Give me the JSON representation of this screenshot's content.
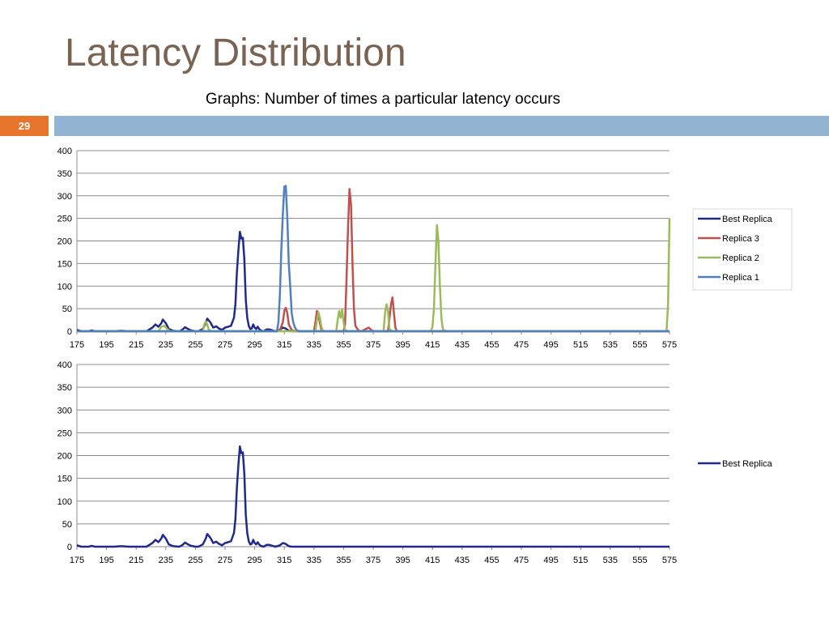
{
  "slide": {
    "title": "Latency Distribution",
    "subtitle": "Graphs: Number of times a particular latency occurs",
    "number": "29"
  },
  "colors": {
    "best_replica": "#1f2a8a",
    "replica_3": "#c0504d",
    "replica_2": "#9bbb59",
    "replica_1": "#4f81bd"
  },
  "chart_data": [
    {
      "type": "line",
      "xlabel": "",
      "ylabel": "",
      "xlim": [
        175,
        575
      ],
      "ylim": [
        0,
        400
      ],
      "x_ticks": [
        175,
        195,
        215,
        235,
        255,
        275,
        295,
        315,
        335,
        355,
        375,
        395,
        415,
        435,
        455,
        475,
        495,
        515,
        535,
        555,
        575
      ],
      "y_ticks": [
        0,
        50,
        100,
        150,
        200,
        250,
        300,
        350,
        400
      ],
      "grid": true,
      "legend_position": "right",
      "series": [
        {
          "name": "Best Replica",
          "color": "#1f2a8a",
          "points": [
            [
              175,
              3
            ],
            [
              178,
              0
            ],
            [
              183,
              0
            ],
            [
              185,
              2
            ],
            [
              187,
              0
            ],
            [
              200,
              0
            ],
            [
              205,
              1
            ],
            [
              210,
              0
            ],
            [
              222,
              0
            ],
            [
              226,
              8
            ],
            [
              228,
              15
            ],
            [
              230,
              10
            ],
            [
              232,
              18
            ],
            [
              233,
              26
            ],
            [
              235,
              18
            ],
            [
              237,
              5
            ],
            [
              240,
              1
            ],
            [
              244,
              0
            ],
            [
              246,
              3
            ],
            [
              248,
              9
            ],
            [
              250,
              5
            ],
            [
              252,
              2
            ],
            [
              255,
              0
            ],
            [
              257,
              0
            ],
            [
              260,
              5
            ],
            [
              262,
              18
            ],
            [
              263,
              28
            ],
            [
              265,
              20
            ],
            [
              267,
              8
            ],
            [
              269,
              11
            ],
            [
              271,
              6
            ],
            [
              273,
              3
            ],
            [
              275,
              8
            ],
            [
              277,
              10
            ],
            [
              279,
              12
            ],
            [
              281,
              30
            ],
            [
              282,
              60
            ],
            [
              283,
              130
            ],
            [
              284,
              180
            ],
            [
              285,
              220
            ],
            [
              286,
              205
            ],
            [
              287,
              207
            ],
            [
              288,
              160
            ],
            [
              289,
              70
            ],
            [
              290,
              30
            ],
            [
              291,
              12
            ],
            [
              292,
              5
            ],
            [
              293,
              6
            ],
            [
              294,
              15
            ],
            [
              295,
              8
            ],
            [
              296,
              5
            ],
            [
              297,
              10
            ],
            [
              298,
              5
            ],
            [
              299,
              2
            ],
            [
              301,
              0
            ],
            [
              303,
              4
            ],
            [
              305,
              4
            ],
            [
              307,
              2
            ],
            [
              309,
              0
            ],
            [
              312,
              3
            ],
            [
              314,
              8
            ],
            [
              316,
              6
            ],
            [
              318,
              1
            ],
            [
              320,
              0
            ],
            [
              575,
              0
            ]
          ]
        },
        {
          "name": "Replica 3",
          "color": "#c0504d",
          "points": [
            [
              175,
              0
            ],
            [
              310,
              0
            ],
            [
              312,
              2
            ],
            [
              314,
              20
            ],
            [
              315,
              45
            ],
            [
              316,
              52
            ],
            [
              317,
              40
            ],
            [
              318,
              15
            ],
            [
              320,
              3
            ],
            [
              322,
              0
            ],
            [
              335,
              0
            ],
            [
              336,
              20
            ],
            [
              337,
              45
            ],
            [
              338,
              40
            ],
            [
              339,
              18
            ],
            [
              340,
              4
            ],
            [
              342,
              0
            ],
            [
              350,
              0
            ],
            [
              355,
              0
            ],
            [
              356,
              15
            ],
            [
              357,
              120
            ],
            [
              358,
              230
            ],
            [
              359,
              315
            ],
            [
              360,
              280
            ],
            [
              361,
              150
            ],
            [
              362,
              50
            ],
            [
              363,
              12
            ],
            [
              365,
              2
            ],
            [
              367,
              0
            ],
            [
              370,
              5
            ],
            [
              372,
              8
            ],
            [
              374,
              2
            ],
            [
              376,
              0
            ],
            [
              385,
              0
            ],
            [
              386,
              30
            ],
            [
              387,
              60
            ],
            [
              388,
              75
            ],
            [
              389,
              40
            ],
            [
              390,
              8
            ],
            [
              391,
              0
            ],
            [
              575,
              0
            ]
          ]
        },
        {
          "name": "Replica 2",
          "color": "#9bbb59",
          "points": [
            [
              175,
              0
            ],
            [
              230,
              0
            ],
            [
              232,
              10
            ],
            [
              234,
              12
            ],
            [
              236,
              5
            ],
            [
              238,
              0
            ],
            [
              260,
              0
            ],
            [
              261,
              15
            ],
            [
              262,
              22
            ],
            [
              263,
              15
            ],
            [
              264,
              3
            ],
            [
              266,
              0
            ],
            [
              336,
              0
            ],
            [
              337,
              25
            ],
            [
              338,
              42
            ],
            [
              339,
              30
            ],
            [
              340,
              10
            ],
            [
              341,
              0
            ],
            [
              350,
              0
            ],
            [
              351,
              25
            ],
            [
              352,
              45
            ],
            [
              353,
              30
            ],
            [
              354,
              48
            ],
            [
              355,
              20
            ],
            [
              356,
              3
            ],
            [
              358,
              0
            ],
            [
              382,
              0
            ],
            [
              383,
              40
            ],
            [
              384,
              60
            ],
            [
              385,
              45
            ],
            [
              386,
              5
            ],
            [
              388,
              0
            ],
            [
              414,
              0
            ],
            [
              415,
              10
            ],
            [
              416,
              50
            ],
            [
              417,
              150
            ],
            [
              418,
              235
            ],
            [
              419,
              200
            ],
            [
              420,
              100
            ],
            [
              421,
              30
            ],
            [
              422,
              5
            ],
            [
              424,
              0
            ],
            [
              573,
              0
            ],
            [
              574,
              60
            ],
            [
              575,
              250
            ]
          ]
        },
        {
          "name": "Replica 1",
          "color": "#4f81bd",
          "points": [
            [
              175,
              0
            ],
            [
              310,
              0
            ],
            [
              311,
              20
            ],
            [
              312,
              80
            ],
            [
              313,
              180
            ],
            [
              314,
              260
            ],
            [
              315,
              320
            ],
            [
              316,
              322
            ],
            [
              317,
              250
            ],
            [
              318,
              150
            ],
            [
              319,
              100
            ],
            [
              320,
              40
            ],
            [
              321,
              20
            ],
            [
              322,
              10
            ],
            [
              323,
              3
            ],
            [
              325,
              0
            ],
            [
              575,
              0
            ]
          ]
        }
      ]
    },
    {
      "type": "line",
      "xlabel": "",
      "ylabel": "",
      "xlim": [
        175,
        575
      ],
      "ylim": [
        0,
        400
      ],
      "x_ticks": [
        175,
        195,
        215,
        235,
        255,
        275,
        295,
        315,
        335,
        355,
        375,
        395,
        415,
        435,
        455,
        475,
        495,
        515,
        535,
        555,
        575
      ],
      "y_ticks": [
        0,
        50,
        100,
        150,
        200,
        250,
        300,
        350,
        400
      ],
      "grid": true,
      "legend_position": "right",
      "series": [
        {
          "name": "Best Replica",
          "color": "#1f2a8a",
          "points": [
            [
              175,
              3
            ],
            [
              178,
              0
            ],
            [
              183,
              0
            ],
            [
              185,
              2
            ],
            [
              187,
              0
            ],
            [
              200,
              0
            ],
            [
              205,
              1
            ],
            [
              210,
              0
            ],
            [
              222,
              0
            ],
            [
              226,
              8
            ],
            [
              228,
              15
            ],
            [
              230,
              10
            ],
            [
              232,
              18
            ],
            [
              233,
              26
            ],
            [
              235,
              18
            ],
            [
              237,
              5
            ],
            [
              240,
              1
            ],
            [
              244,
              0
            ],
            [
              246,
              3
            ],
            [
              248,
              9
            ],
            [
              250,
              5
            ],
            [
              252,
              2
            ],
            [
              255,
              0
            ],
            [
              257,
              0
            ],
            [
              260,
              5
            ],
            [
              262,
              18
            ],
            [
              263,
              28
            ],
            [
              265,
              20
            ],
            [
              267,
              8
            ],
            [
              269,
              11
            ],
            [
              271,
              6
            ],
            [
              273,
              3
            ],
            [
              275,
              8
            ],
            [
              277,
              10
            ],
            [
              279,
              12
            ],
            [
              281,
              30
            ],
            [
              282,
              60
            ],
            [
              283,
              130
            ],
            [
              284,
              180
            ],
            [
              285,
              220
            ],
            [
              286,
              205
            ],
            [
              287,
              207
            ],
            [
              288,
              160
            ],
            [
              289,
              70
            ],
            [
              290,
              30
            ],
            [
              291,
              12
            ],
            [
              292,
              5
            ],
            [
              293,
              6
            ],
            [
              294,
              15
            ],
            [
              295,
              8
            ],
            [
              296,
              5
            ],
            [
              297,
              10
            ],
            [
              298,
              5
            ],
            [
              299,
              2
            ],
            [
              301,
              0
            ],
            [
              303,
              4
            ],
            [
              305,
              4
            ],
            [
              307,
              2
            ],
            [
              309,
              0
            ],
            [
              312,
              3
            ],
            [
              314,
              8
            ],
            [
              316,
              6
            ],
            [
              318,
              1
            ],
            [
              320,
              0
            ],
            [
              575,
              0
            ]
          ]
        }
      ]
    }
  ]
}
